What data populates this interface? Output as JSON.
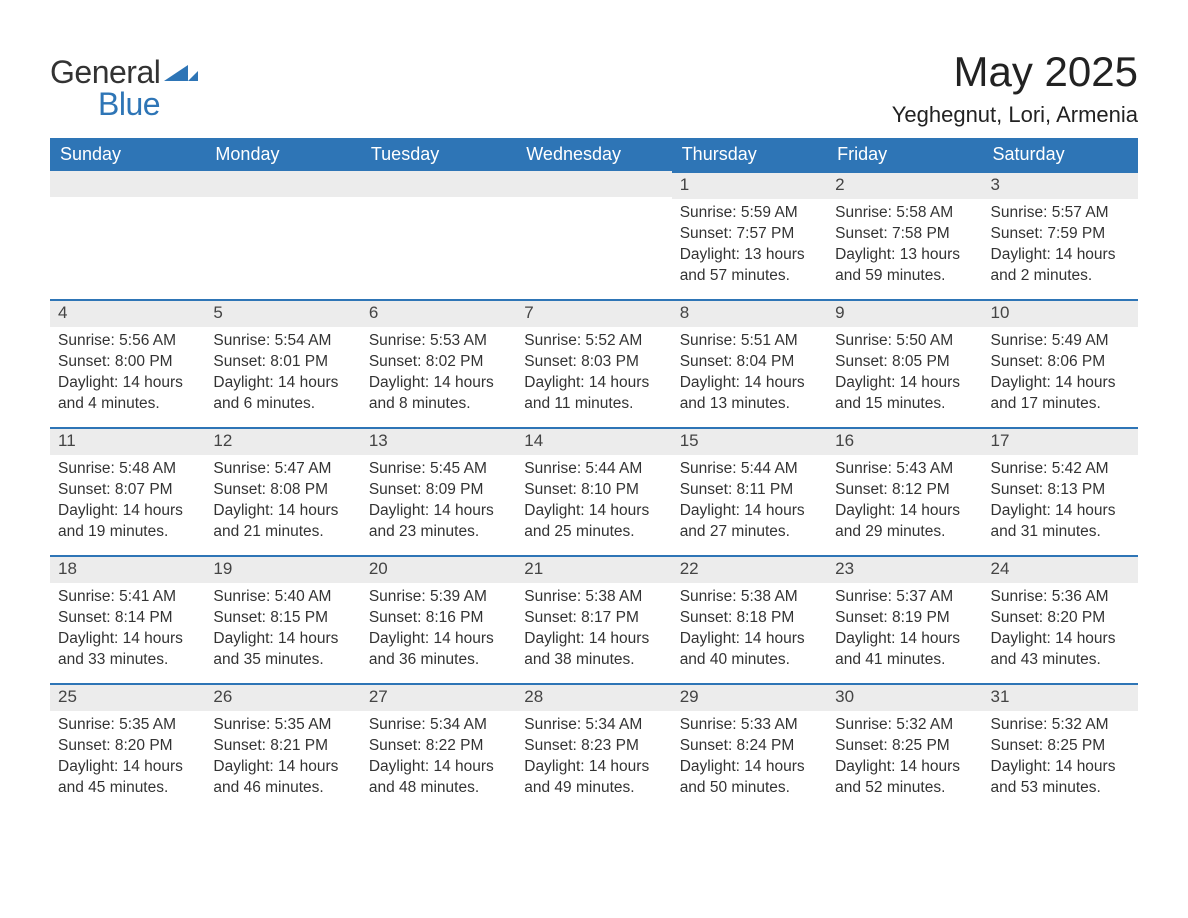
{
  "logo": {
    "word1": "General",
    "word2": "Blue"
  },
  "title": "May 2025",
  "subtitle": "Yeghegnut, Lori, Armenia",
  "colors": {
    "header_bg": "#2e75b6",
    "header_text": "#ffffff",
    "daybar_bg": "#ececec",
    "daybar_border": "#2e75b6",
    "text": "#333333",
    "logo_blue": "#2e75b6"
  },
  "fonts": {
    "title_size_pt": 32,
    "subtitle_size_pt": 17,
    "header_cell_size_pt": 14,
    "body_size_pt": 12
  },
  "weekdays": [
    "Sunday",
    "Monday",
    "Tuesday",
    "Wednesday",
    "Thursday",
    "Friday",
    "Saturday"
  ],
  "weeks": [
    [
      null,
      null,
      null,
      null,
      {
        "n": "1",
        "sr": "Sunrise: 5:59 AM",
        "ss": "Sunset: 7:57 PM",
        "d1": "Daylight: 13 hours",
        "d2": "and 57 minutes."
      },
      {
        "n": "2",
        "sr": "Sunrise: 5:58 AM",
        "ss": "Sunset: 7:58 PM",
        "d1": "Daylight: 13 hours",
        "d2": "and 59 minutes."
      },
      {
        "n": "3",
        "sr": "Sunrise: 5:57 AM",
        "ss": "Sunset: 7:59 PM",
        "d1": "Daylight: 14 hours",
        "d2": "and 2 minutes."
      }
    ],
    [
      {
        "n": "4",
        "sr": "Sunrise: 5:56 AM",
        "ss": "Sunset: 8:00 PM",
        "d1": "Daylight: 14 hours",
        "d2": "and 4 minutes."
      },
      {
        "n": "5",
        "sr": "Sunrise: 5:54 AM",
        "ss": "Sunset: 8:01 PM",
        "d1": "Daylight: 14 hours",
        "d2": "and 6 minutes."
      },
      {
        "n": "6",
        "sr": "Sunrise: 5:53 AM",
        "ss": "Sunset: 8:02 PM",
        "d1": "Daylight: 14 hours",
        "d2": "and 8 minutes."
      },
      {
        "n": "7",
        "sr": "Sunrise: 5:52 AM",
        "ss": "Sunset: 8:03 PM",
        "d1": "Daylight: 14 hours",
        "d2": "and 11 minutes."
      },
      {
        "n": "8",
        "sr": "Sunrise: 5:51 AM",
        "ss": "Sunset: 8:04 PM",
        "d1": "Daylight: 14 hours",
        "d2": "and 13 minutes."
      },
      {
        "n": "9",
        "sr": "Sunrise: 5:50 AM",
        "ss": "Sunset: 8:05 PM",
        "d1": "Daylight: 14 hours",
        "d2": "and 15 minutes."
      },
      {
        "n": "10",
        "sr": "Sunrise: 5:49 AM",
        "ss": "Sunset: 8:06 PM",
        "d1": "Daylight: 14 hours",
        "d2": "and 17 minutes."
      }
    ],
    [
      {
        "n": "11",
        "sr": "Sunrise: 5:48 AM",
        "ss": "Sunset: 8:07 PM",
        "d1": "Daylight: 14 hours",
        "d2": "and 19 minutes."
      },
      {
        "n": "12",
        "sr": "Sunrise: 5:47 AM",
        "ss": "Sunset: 8:08 PM",
        "d1": "Daylight: 14 hours",
        "d2": "and 21 minutes."
      },
      {
        "n": "13",
        "sr": "Sunrise: 5:45 AM",
        "ss": "Sunset: 8:09 PM",
        "d1": "Daylight: 14 hours",
        "d2": "and 23 minutes."
      },
      {
        "n": "14",
        "sr": "Sunrise: 5:44 AM",
        "ss": "Sunset: 8:10 PM",
        "d1": "Daylight: 14 hours",
        "d2": "and 25 minutes."
      },
      {
        "n": "15",
        "sr": "Sunrise: 5:44 AM",
        "ss": "Sunset: 8:11 PM",
        "d1": "Daylight: 14 hours",
        "d2": "and 27 minutes."
      },
      {
        "n": "16",
        "sr": "Sunrise: 5:43 AM",
        "ss": "Sunset: 8:12 PM",
        "d1": "Daylight: 14 hours",
        "d2": "and 29 minutes."
      },
      {
        "n": "17",
        "sr": "Sunrise: 5:42 AM",
        "ss": "Sunset: 8:13 PM",
        "d1": "Daylight: 14 hours",
        "d2": "and 31 minutes."
      }
    ],
    [
      {
        "n": "18",
        "sr": "Sunrise: 5:41 AM",
        "ss": "Sunset: 8:14 PM",
        "d1": "Daylight: 14 hours",
        "d2": "and 33 minutes."
      },
      {
        "n": "19",
        "sr": "Sunrise: 5:40 AM",
        "ss": "Sunset: 8:15 PM",
        "d1": "Daylight: 14 hours",
        "d2": "and 35 minutes."
      },
      {
        "n": "20",
        "sr": "Sunrise: 5:39 AM",
        "ss": "Sunset: 8:16 PM",
        "d1": "Daylight: 14 hours",
        "d2": "and 36 minutes."
      },
      {
        "n": "21",
        "sr": "Sunrise: 5:38 AM",
        "ss": "Sunset: 8:17 PM",
        "d1": "Daylight: 14 hours",
        "d2": "and 38 minutes."
      },
      {
        "n": "22",
        "sr": "Sunrise: 5:38 AM",
        "ss": "Sunset: 8:18 PM",
        "d1": "Daylight: 14 hours",
        "d2": "and 40 minutes."
      },
      {
        "n": "23",
        "sr": "Sunrise: 5:37 AM",
        "ss": "Sunset: 8:19 PM",
        "d1": "Daylight: 14 hours",
        "d2": "and 41 minutes."
      },
      {
        "n": "24",
        "sr": "Sunrise: 5:36 AM",
        "ss": "Sunset: 8:20 PM",
        "d1": "Daylight: 14 hours",
        "d2": "and 43 minutes."
      }
    ],
    [
      {
        "n": "25",
        "sr": "Sunrise: 5:35 AM",
        "ss": "Sunset: 8:20 PM",
        "d1": "Daylight: 14 hours",
        "d2": "and 45 minutes."
      },
      {
        "n": "26",
        "sr": "Sunrise: 5:35 AM",
        "ss": "Sunset: 8:21 PM",
        "d1": "Daylight: 14 hours",
        "d2": "and 46 minutes."
      },
      {
        "n": "27",
        "sr": "Sunrise: 5:34 AM",
        "ss": "Sunset: 8:22 PM",
        "d1": "Daylight: 14 hours",
        "d2": "and 48 minutes."
      },
      {
        "n": "28",
        "sr": "Sunrise: 5:34 AM",
        "ss": "Sunset: 8:23 PM",
        "d1": "Daylight: 14 hours",
        "d2": "and 49 minutes."
      },
      {
        "n": "29",
        "sr": "Sunrise: 5:33 AM",
        "ss": "Sunset: 8:24 PM",
        "d1": "Daylight: 14 hours",
        "d2": "and 50 minutes."
      },
      {
        "n": "30",
        "sr": "Sunrise: 5:32 AM",
        "ss": "Sunset: 8:25 PM",
        "d1": "Daylight: 14 hours",
        "d2": "and 52 minutes."
      },
      {
        "n": "31",
        "sr": "Sunrise: 5:32 AM",
        "ss": "Sunset: 8:25 PM",
        "d1": "Daylight: 14 hours",
        "d2": "and 53 minutes."
      }
    ]
  ]
}
